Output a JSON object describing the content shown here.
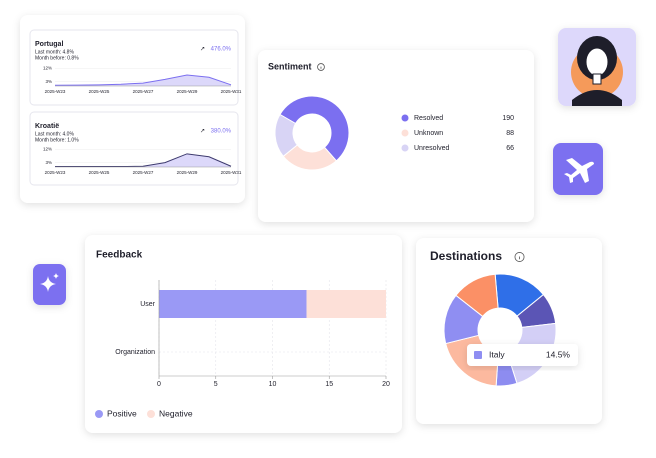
{
  "chart_data": [
    {
      "type": "area",
      "title": "Portugal",
      "annotations": [
        "Last month: 4.8%",
        "Month before: 0.8%"
      ],
      "badge": "476.0%",
      "categories": [
        "2025-W23",
        null,
        "2025-W25",
        null,
        "2025-W27",
        null,
        "2025-W29",
        null,
        "2025-W31"
      ],
      "values": [
        0.5,
        0.6,
        0.8,
        1.2,
        2,
        4.5,
        7.5,
        6,
        0.8
      ],
      "color": "#7b6ff0",
      "fill": "#dcd8fa",
      "ylim": [
        0,
        13
      ],
      "yticks": [
        {
          "value": 3,
          "label": "3%"
        },
        {
          "value": 12,
          "label": "12%"
        }
      ]
    },
    {
      "type": "area",
      "title": "Kroatië",
      "annotations": [
        "Last month: 4.0%",
        "Month before: 1.0%"
      ],
      "badge": "380.0%",
      "categories": [
        "2025-W23",
        null,
        "2025-W25",
        null,
        "2025-W27",
        null,
        "2025-W29",
        null,
        "2025-W31"
      ],
      "values": [
        0.3,
        0.3,
        0.3,
        0.3,
        0.5,
        3,
        9,
        7,
        0.5
      ],
      "color": "#3d3a6e",
      "fill": "#dcd8fa",
      "ylim": [
        0,
        13
      ],
      "yticks": [
        {
          "value": 3,
          "label": "3%"
        },
        {
          "value": 12,
          "label": "12%"
        }
      ]
    },
    {
      "type": "pie",
      "title": "Sentiment",
      "hole": true,
      "categories": [
        "Resolved",
        "Unknown",
        "Unresolved"
      ],
      "values": [
        190,
        88,
        66
      ],
      "colors": [
        "#7b6ff0",
        "#fde0d8",
        "#d8d4f5"
      ]
    },
    {
      "type": "bar",
      "title": "Feedback",
      "orientation": "horizontal",
      "stacked": true,
      "grid": true,
      "categories": [
        "User",
        "Organization"
      ],
      "series": [
        {
          "name": "Positive",
          "color": "#9a99f5",
          "values": [
            13,
            0
          ]
        },
        {
          "name": "Negative",
          "color": "#fde0d8",
          "values": [
            7,
            0
          ]
        }
      ],
      "xlim": [
        0,
        20
      ],
      "xticks": [
        0,
        5,
        10,
        15,
        20
      ]
    },
    {
      "type": "pie",
      "title": "Destinations",
      "hole": true,
      "categories": [
        null,
        null,
        null,
        null,
        null,
        "Italy",
        null
      ],
      "values": [
        15.5,
        9,
        22,
        6,
        20,
        14.5,
        13
      ],
      "value_labels": [
        null,
        null,
        null,
        null,
        null,
        "14.5%",
        null
      ],
      "colors": [
        "#2f6fe8",
        "#5b55b5",
        "#d3cff6",
        "#8d8cf0",
        "#fcb99f",
        "#8f8ef2",
        "#fb9066"
      ],
      "tooltip_index": 5
    }
  ]
}
